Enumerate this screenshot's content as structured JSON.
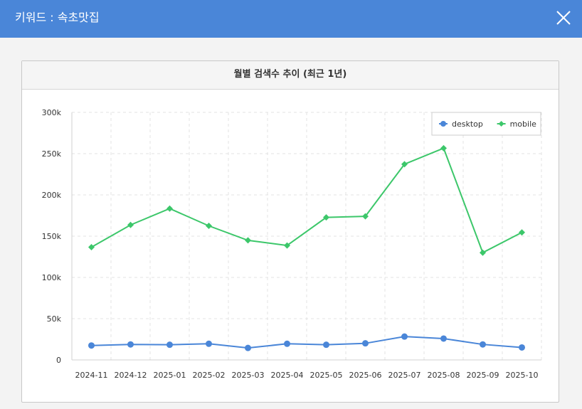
{
  "header": {
    "title": "키워드 : 속초맛집",
    "close_icon": "close-icon"
  },
  "colors": {
    "header_bg": "#4a86d8",
    "desktop": "#4a86d8",
    "mobile": "#3cc76a"
  },
  "card": {
    "title": "월별 검색수 추이 (최근 1년)"
  },
  "chart_data": {
    "type": "line",
    "title": "월별 검색수 추이 (최근 1년)",
    "xlabel": "",
    "ylabel": "",
    "categories": [
      "2024-11",
      "2024-12",
      "2025-01",
      "2025-02",
      "2025-03",
      "2025-04",
      "2025-05",
      "2025-06",
      "2025-07",
      "2025-08",
      "2025-09",
      "2025-10"
    ],
    "ylim": [
      0,
      300000
    ],
    "yticks": [
      0,
      50000,
      100000,
      150000,
      200000,
      250000,
      300000
    ],
    "ytick_labels": [
      "0",
      "50k",
      "100k",
      "150k",
      "200k",
      "250k",
      "300k"
    ],
    "grid": true,
    "legend_position": "top-right",
    "series": [
      {
        "name": "desktop",
        "color": "#4a86d8",
        "marker": "circle",
        "values": [
          17500,
          18800,
          18400,
          19600,
          14500,
          19600,
          18400,
          20100,
          28300,
          25900,
          18800,
          15100
        ]
      },
      {
        "name": "mobile",
        "color": "#3cc76a",
        "marker": "diamond",
        "values": [
          136600,
          163600,
          183400,
          162500,
          144900,
          138700,
          172700,
          174000,
          237200,
          256600,
          130000,
          154500
        ]
      }
    ]
  }
}
